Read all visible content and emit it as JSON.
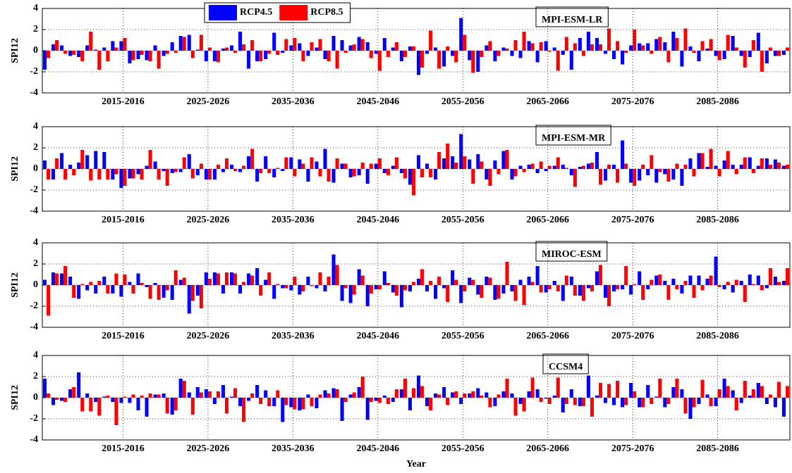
{
  "chart_data": [
    {
      "type": "bar",
      "annotation": "MPI-ESM-LR",
      "y_label": "SPI12",
      "ylim": [
        -4,
        4
      ],
      "yticks": [
        -4,
        -2,
        0,
        2,
        4
      ],
      "grid": true,
      "legend": "top",
      "categories": [
        null,
        null,
        null,
        null,
        null,
        null,
        null,
        null,
        null,
        "2015-2016",
        null,
        null,
        null,
        null,
        null,
        null,
        null,
        null,
        null,
        "2025-2026",
        null,
        null,
        null,
        null,
        null,
        null,
        null,
        null,
        null,
        "2035-2036",
        null,
        null,
        null,
        null,
        null,
        null,
        null,
        null,
        null,
        "2045-2046",
        null,
        null,
        null,
        null,
        null,
        null,
        null,
        null,
        null,
        "2055-2056",
        null,
        null,
        null,
        null,
        null,
        null,
        null,
        null,
        null,
        "2065-2066",
        null,
        null,
        null,
        null,
        null,
        null,
        null,
        null,
        null,
        "2075-2076",
        null,
        null,
        null,
        null,
        null,
        null,
        null,
        null,
        null,
        "2085-2086",
        null,
        null,
        null,
        null,
        null,
        null,
        null,
        null
      ],
      "series": [
        {
          "name": "RCP4.5",
          "color": "#0000ff",
          "values": [
            -1.8,
            0.6,
            0.5,
            -0.5,
            -0.6,
            0.5,
            0.1,
            0.3,
            0.9,
            0.9,
            -1.2,
            -0.8,
            -0.9,
            0.5,
            -0.5,
            0.8,
            1.4,
            1.5,
            0.1,
            -1.0,
            -1.0,
            0.2,
            0.5,
            1.8,
            -1.7,
            -1.0,
            -0.8,
            1.7,
            -0.2,
            0.5,
            0.7,
            -0.5,
            0.3,
            -0.8,
            1.4,
            1.0,
            0.5,
            1.3,
            0.8,
            -0.3,
            1.2,
            0.3,
            -1.0,
            0.4,
            -2.3,
            -0.3,
            0.3,
            -1.5,
            -0.5,
            3.1,
            -0.9,
            -2.0,
            0.5,
            -1.0,
            0.3,
            -0.5,
            -0.7,
            0.9,
            -1.1,
            0.9,
            0.3,
            -0.4,
            -1.8,
            1.2,
            1.8,
            1.2,
            -0.3,
            -0.8,
            -1.3,
            0.5,
            0.7,
            0.7,
            1.1,
            0.8,
            1.8,
            -1.5,
            0.4,
            -1.0,
            0.2,
            -0.5,
            -0.8,
            1.4,
            -0.5,
            -0.6,
            1.7,
            -1.2,
            -0.5,
            -0.4
          ]
        },
        {
          "name": "RCP8.5",
          "color": "#ff0000",
          "values": [
            -0.7,
            1.0,
            -0.3,
            -0.4,
            -1.0,
            1.8,
            -1.8,
            -1.0,
            0.3,
            1.2,
            -0.9,
            -0.4,
            -1.0,
            -1.7,
            -0.3,
            -0.2,
            1.3,
            -0.7,
            1.5,
            0.3,
            -1.1,
            0.3,
            -0.2,
            0.6,
            1.0,
            -1.0,
            -0.3,
            -0.4,
            1.1,
            1.2,
            -1.0,
            0.8,
            1.1,
            -1.0,
            -1.7,
            -0.2,
            0.6,
            1.1,
            -0.7,
            -1.9,
            -0.6,
            0.8,
            -0.6,
            0.4,
            -1.6,
            1.9,
            -1.7,
            0.4,
            -1.1,
            1.5,
            -2.1,
            -0.6,
            0.9,
            -0.5,
            0.2,
            1.0,
            1.8,
            0.7,
            0.8,
            -0.1,
            -1.9,
            1.3,
            0.7,
            -0.5,
            0.6,
            0.6,
            2.1,
            0.9,
            -0.2,
            2.0,
            0.5,
            -0.3,
            1.3,
            -1.1,
            1.2,
            2.1,
            -0.2,
            0.9,
            1.1,
            -0.9,
            1.5,
            0.3,
            -1.6,
            1.0,
            -2.0,
            0.3,
            -0.5,
            0.3
          ]
        }
      ]
    },
    {
      "type": "bar",
      "annotation": "MPI-ESM-MR",
      "y_label": "SPI12",
      "ylim": [
        -4,
        4
      ],
      "yticks": [
        -4,
        -2,
        0,
        2,
        4
      ],
      "grid": true,
      "categories": [
        null,
        null,
        null,
        null,
        null,
        null,
        null,
        null,
        null,
        "2015-2016",
        null,
        null,
        null,
        null,
        null,
        null,
        null,
        null,
        null,
        "2025-2026",
        null,
        null,
        null,
        null,
        null,
        null,
        null,
        null,
        null,
        "2035-2036",
        null,
        null,
        null,
        null,
        null,
        null,
        null,
        null,
        null,
        "2045-2046",
        null,
        null,
        null,
        null,
        null,
        null,
        null,
        null,
        null,
        "2055-2056",
        null,
        null,
        null,
        null,
        null,
        null,
        null,
        null,
        null,
        "2065-2066",
        null,
        null,
        null,
        null,
        null,
        null,
        null,
        null,
        null,
        "2075-2076",
        null,
        null,
        null,
        null,
        null,
        null,
        null,
        null,
        null,
        "2085-2086",
        null,
        null,
        null,
        null,
        null,
        null,
        null,
        null
      ],
      "series": [
        {
          "color": "#0000ff",
          "values": [
            0.8,
            -1.0,
            1.5,
            0.4,
            0.6,
            1.3,
            1.7,
            1.6,
            -1.0,
            -1.8,
            -0.9,
            -0.5,
            0.3,
            0.7,
            -0.2,
            -0.4,
            -0.3,
            1.4,
            -0.6,
            -1.0,
            -1.0,
            -0.3,
            0.4,
            -0.3,
            1.2,
            -1.2,
            1.2,
            -0.8,
            -0.2,
            1.1,
            0.9,
            -1.2,
            0.7,
            1.9,
            -1.3,
            0.5,
            -0.8,
            -0.6,
            -1.4,
            0.5,
            -0.4,
            0.3,
            -0.4,
            -1.5,
            1.3,
            0.5,
            -1.0,
            1.0,
            1.2,
            3.3,
            0.9,
            1.4,
            -1.0,
            0.8,
            1.7,
            -1.0,
            0.3,
            0.4,
            -0.4,
            -0.2,
            0.3,
            0.4,
            -0.6,
            0.2,
            0.5,
            1.6,
            -1.1,
            0.4,
            2.7,
            -1.3,
            -1.1,
            -0.6,
            -1.3,
            -0.5,
            -1.0,
            -1.6,
            1.0,
            1.5,
            0.2,
            0.3,
            0.8,
            0.4,
            0.4,
            1.1,
            0.3,
            1.0,
            0.9,
            0.3
          ]
        },
        {
          "color": "#ff0000",
          "values": [
            -1.0,
            1.0,
            -1.0,
            -0.6,
            1.8,
            -1.1,
            -1.0,
            -1.0,
            -0.5,
            -1.6,
            -0.9,
            -1.0,
            1.8,
            -1.0,
            -1.6,
            -0.3,
            1.1,
            -0.9,
            0.5,
            -1.0,
            0.4,
            1.0,
            -0.2,
            0.3,
            1.9,
            -0.4,
            -0.4,
            0.1,
            1.1,
            -0.7,
            0.5,
            1.1,
            -0.7,
            -1.2,
            1.0,
            0.5,
            -0.7,
            0.6,
            0.5,
            1.0,
            -0.6,
            1.1,
            -0.9,
            -2.5,
            -0.8,
            -0.8,
            1.6,
            2.4,
            0.6,
            1.2,
            -1.4,
            0.7,
            -1.6,
            -0.5,
            1.8,
            -0.7,
            -0.3,
            0.5,
            0.7,
            0.3,
            1.1,
            0.1,
            -1.7,
            0.3,
            0.6,
            -1.5,
            0.4,
            -1.3,
            0.5,
            -1.6,
            0.4,
            1.3,
            -0.3,
            -1.2,
            0.5,
            0.4,
            -0.7,
            1.5,
            1.9,
            -0.7,
            1.7,
            -0.5,
            1.1,
            -0.4,
            1.0,
            0.4,
            0.6,
            0.4
          ]
        }
      ]
    },
    {
      "type": "bar",
      "annotation": "MIROC-ESM",
      "y_label": "SPI12",
      "ylim": [
        -4,
        4
      ],
      "yticks": [
        -4,
        -2,
        0,
        2,
        4
      ],
      "grid": true,
      "categories": [
        null,
        null,
        null,
        null,
        null,
        null,
        null,
        null,
        null,
        "2015-2016",
        null,
        null,
        null,
        null,
        null,
        null,
        null,
        null,
        null,
        "2025-2026",
        null,
        null,
        null,
        null,
        null,
        null,
        null,
        null,
        null,
        "2035-2036",
        null,
        null,
        null,
        null,
        null,
        null,
        null,
        null,
        null,
        "2045-2046",
        null,
        null,
        null,
        null,
        null,
        null,
        null,
        null,
        null,
        "2055-2056",
        null,
        null,
        null,
        null,
        null,
        null,
        null,
        null,
        null,
        "2065-2066",
        null,
        null,
        null,
        null,
        null,
        null,
        null,
        null,
        null,
        "2075-2076",
        null,
        null,
        null,
        null,
        null,
        null,
        null,
        null,
        null,
        "2085-2086",
        null,
        null,
        null,
        null,
        null,
        null,
        null,
        null
      ],
      "series": [
        {
          "color": "#0000ff",
          "values": [
            0.5,
            1.2,
            1.1,
            0.8,
            -1.3,
            -0.5,
            -0.8,
            0.8,
            -0.8,
            -1.1,
            0.3,
            1.1,
            -0.2,
            0.2,
            -1.2,
            -1.4,
            0.5,
            -2.7,
            -1.0,
            1.2,
            1.2,
            -0.8,
            1.2,
            -0.8,
            1.1,
            1.6,
            0.5,
            -1.3,
            -0.3,
            -0.5,
            -0.9,
            0.8,
            -0.3,
            -0.6,
            2.9,
            -1.5,
            -1.7,
            1.5,
            -2.0,
            -0.4,
            1.3,
            -0.7,
            -2.1,
            -0.6,
            0.6,
            -0.6,
            -1.3,
            -0.3,
            1.4,
            -1.7,
            0.7,
            -0.9,
            0.8,
            -1.4,
            -0.8,
            -0.6,
            0.5,
            0.8,
            1.8,
            -0.7,
            0.4,
            -1.5,
            0.8,
            -1.0,
            -0.3,
            1.3,
            -1.2,
            -0.6,
            -0.4,
            -0.9,
            1.3,
            -0.4,
            0.9,
            0.4,
            0.6,
            -0.8,
            0.9,
            0.9,
            0.6,
            2.7,
            -0.4,
            -0.7,
            0.4,
            1.0,
            0.9,
            -0.3,
            0.8,
            0.4
          ]
        },
        {
          "color": "#ff0000",
          "values": [
            -2.9,
            1.1,
            1.8,
            -1.2,
            0.1,
            0.3,
            0.4,
            -0.8,
            1.1,
            1.0,
            -0.8,
            0.2,
            -1.3,
            -1.4,
            -0.5,
            1.4,
            0.7,
            -1.5,
            -2.2,
            0.6,
            1.1,
            1.2,
            1.1,
            0.3,
            0.9,
            -1.0,
            1.2,
            0.1,
            -0.3,
            0.8,
            -0.6,
            -0.1,
            1.2,
            0.8,
            1.9,
            -0.3,
            -0.9,
            0.9,
            -0.8,
            -0.4,
            0.2,
            -1.0,
            -0.5,
            0.3,
            1.5,
            0.4,
            0.8,
            -1.6,
            0.5,
            -0.6,
            0.5,
            -1.2,
            0.7,
            -1.3,
            2.2,
            -1.5,
            -1.9,
            0.3,
            -0.7,
            -0.4,
            -0.6,
            0.9,
            -1.0,
            -1.5,
            -0.6,
            1.9,
            -2.0,
            -0.4,
            1.8,
            0.1,
            -1.4,
            0.5,
            1.0,
            -1.4,
            -0.4,
            0.4,
            -1.2,
            -0.5,
            0.9,
            -0.2,
            0.3,
            0.5,
            -1.6,
            0.1,
            -0.5,
            1.6,
            0.3,
            1.6
          ]
        }
      ]
    },
    {
      "type": "bar",
      "annotation": "CCSM4",
      "y_label": "SPI12",
      "x_label": "Year",
      "ylim": [
        -4,
        4
      ],
      "yticks": [
        -4,
        -2,
        0,
        2,
        4
      ],
      "grid": true,
      "categories": [
        null,
        null,
        null,
        null,
        null,
        null,
        null,
        null,
        null,
        "2015-2016",
        null,
        null,
        null,
        null,
        null,
        null,
        null,
        null,
        null,
        "2025-2026",
        null,
        null,
        null,
        null,
        null,
        null,
        null,
        null,
        null,
        "2035-2036",
        null,
        null,
        null,
        null,
        null,
        null,
        null,
        null,
        null,
        "2045-2046",
        null,
        null,
        null,
        null,
        null,
        null,
        null,
        null,
        null,
        "2055-2056",
        null,
        null,
        null,
        null,
        null,
        null,
        null,
        null,
        null,
        "2065-2066",
        null,
        null,
        null,
        null,
        null,
        null,
        null,
        null,
        null,
        "2075-2076",
        null,
        null,
        null,
        null,
        null,
        null,
        null,
        null,
        null,
        "2085-2086",
        null,
        null,
        null,
        null,
        null,
        null,
        null,
        null
      ],
      "series": [
        {
          "color": "#0000ff",
          "values": [
            1.8,
            -0.7,
            -0.3,
            0.8,
            2.4,
            0.4,
            -0.4,
            0.1,
            -0.4,
            -0.5,
            -0.5,
            -1.2,
            -1.8,
            0.3,
            0.4,
            -1.6,
            1.8,
            0.5,
            1.0,
            0.8,
            -0.6,
            1.2,
            0.1,
            -0.8,
            -0.3,
            1.2,
            0.7,
            -0.8,
            -2.3,
            -0.9,
            -1.2,
            0.3,
            -1.0,
            0.7,
            0.9,
            -2.2,
            0.3,
            1.0,
            -2.1,
            -0.3,
            0.2,
            -0.4,
            0.8,
            -1.2,
            2.1,
            -0.8,
            0.4,
            1.0,
            0.5,
            -0.6,
            0.4,
            0.9,
            0.5,
            -0.8,
            0.6,
            0.4,
            -0.6,
            0.6,
            0.8,
            -0.1,
            0.2,
            -1.4,
            0.8,
            -0.8,
            2.1,
            0.2,
            -0.5,
            -0.7,
            -0.9,
            1.4,
            -0.9,
            1.2,
            0.1,
            -0.9,
            1.0,
            0.8,
            -2.0,
            -0.6,
            0.3,
            -0.8,
            1.8,
            0.7,
            -0.5,
            0.2,
            1.4,
            -0.6,
            -0.9,
            -1.8
          ]
        },
        {
          "color": "#ff0000",
          "values": [
            0.4,
            -0.2,
            -0.4,
            1.0,
            -1.3,
            -1.3,
            -1.7,
            0.2,
            -2.6,
            0.1,
            0.3,
            0.2,
            0.4,
            0.3,
            -1.5,
            -1.2,
            1.6,
            -1.6,
            0.5,
            0.6,
            0.6,
            -1.5,
            0.9,
            -2.3,
            0.4,
            -0.6,
            -0.8,
            0.7,
            -0.7,
            -1.1,
            -1.1,
            -0.8,
            0.3,
            0.4,
            0.8,
            -0.4,
            0.5,
            2.0,
            -0.4,
            -0.5,
            -0.6,
            0.8,
            1.8,
            0.9,
            1.1,
            -1.2,
            0.3,
            -0.7,
            0.6,
            0.4,
            0.6,
            0.2,
            -0.9,
            0.3,
            1.8,
            -1.7,
            -1.3,
            1.9,
            -0.4,
            -0.6,
            1.9,
            -0.6,
            -0.7,
            -0.8,
            -1.8,
            1.4,
            1.3,
            1.6,
            -0.7,
            0.6,
            -0.9,
            -0.6,
            1.8,
            -0.6,
            1.8,
            -1.5,
            -0.9,
            1.7,
            -0.8,
            0.8,
            1.1,
            -1.2,
            1.6,
            0.8,
            1.1,
            0.3,
            1.5,
            1.1
          ]
        }
      ]
    }
  ]
}
